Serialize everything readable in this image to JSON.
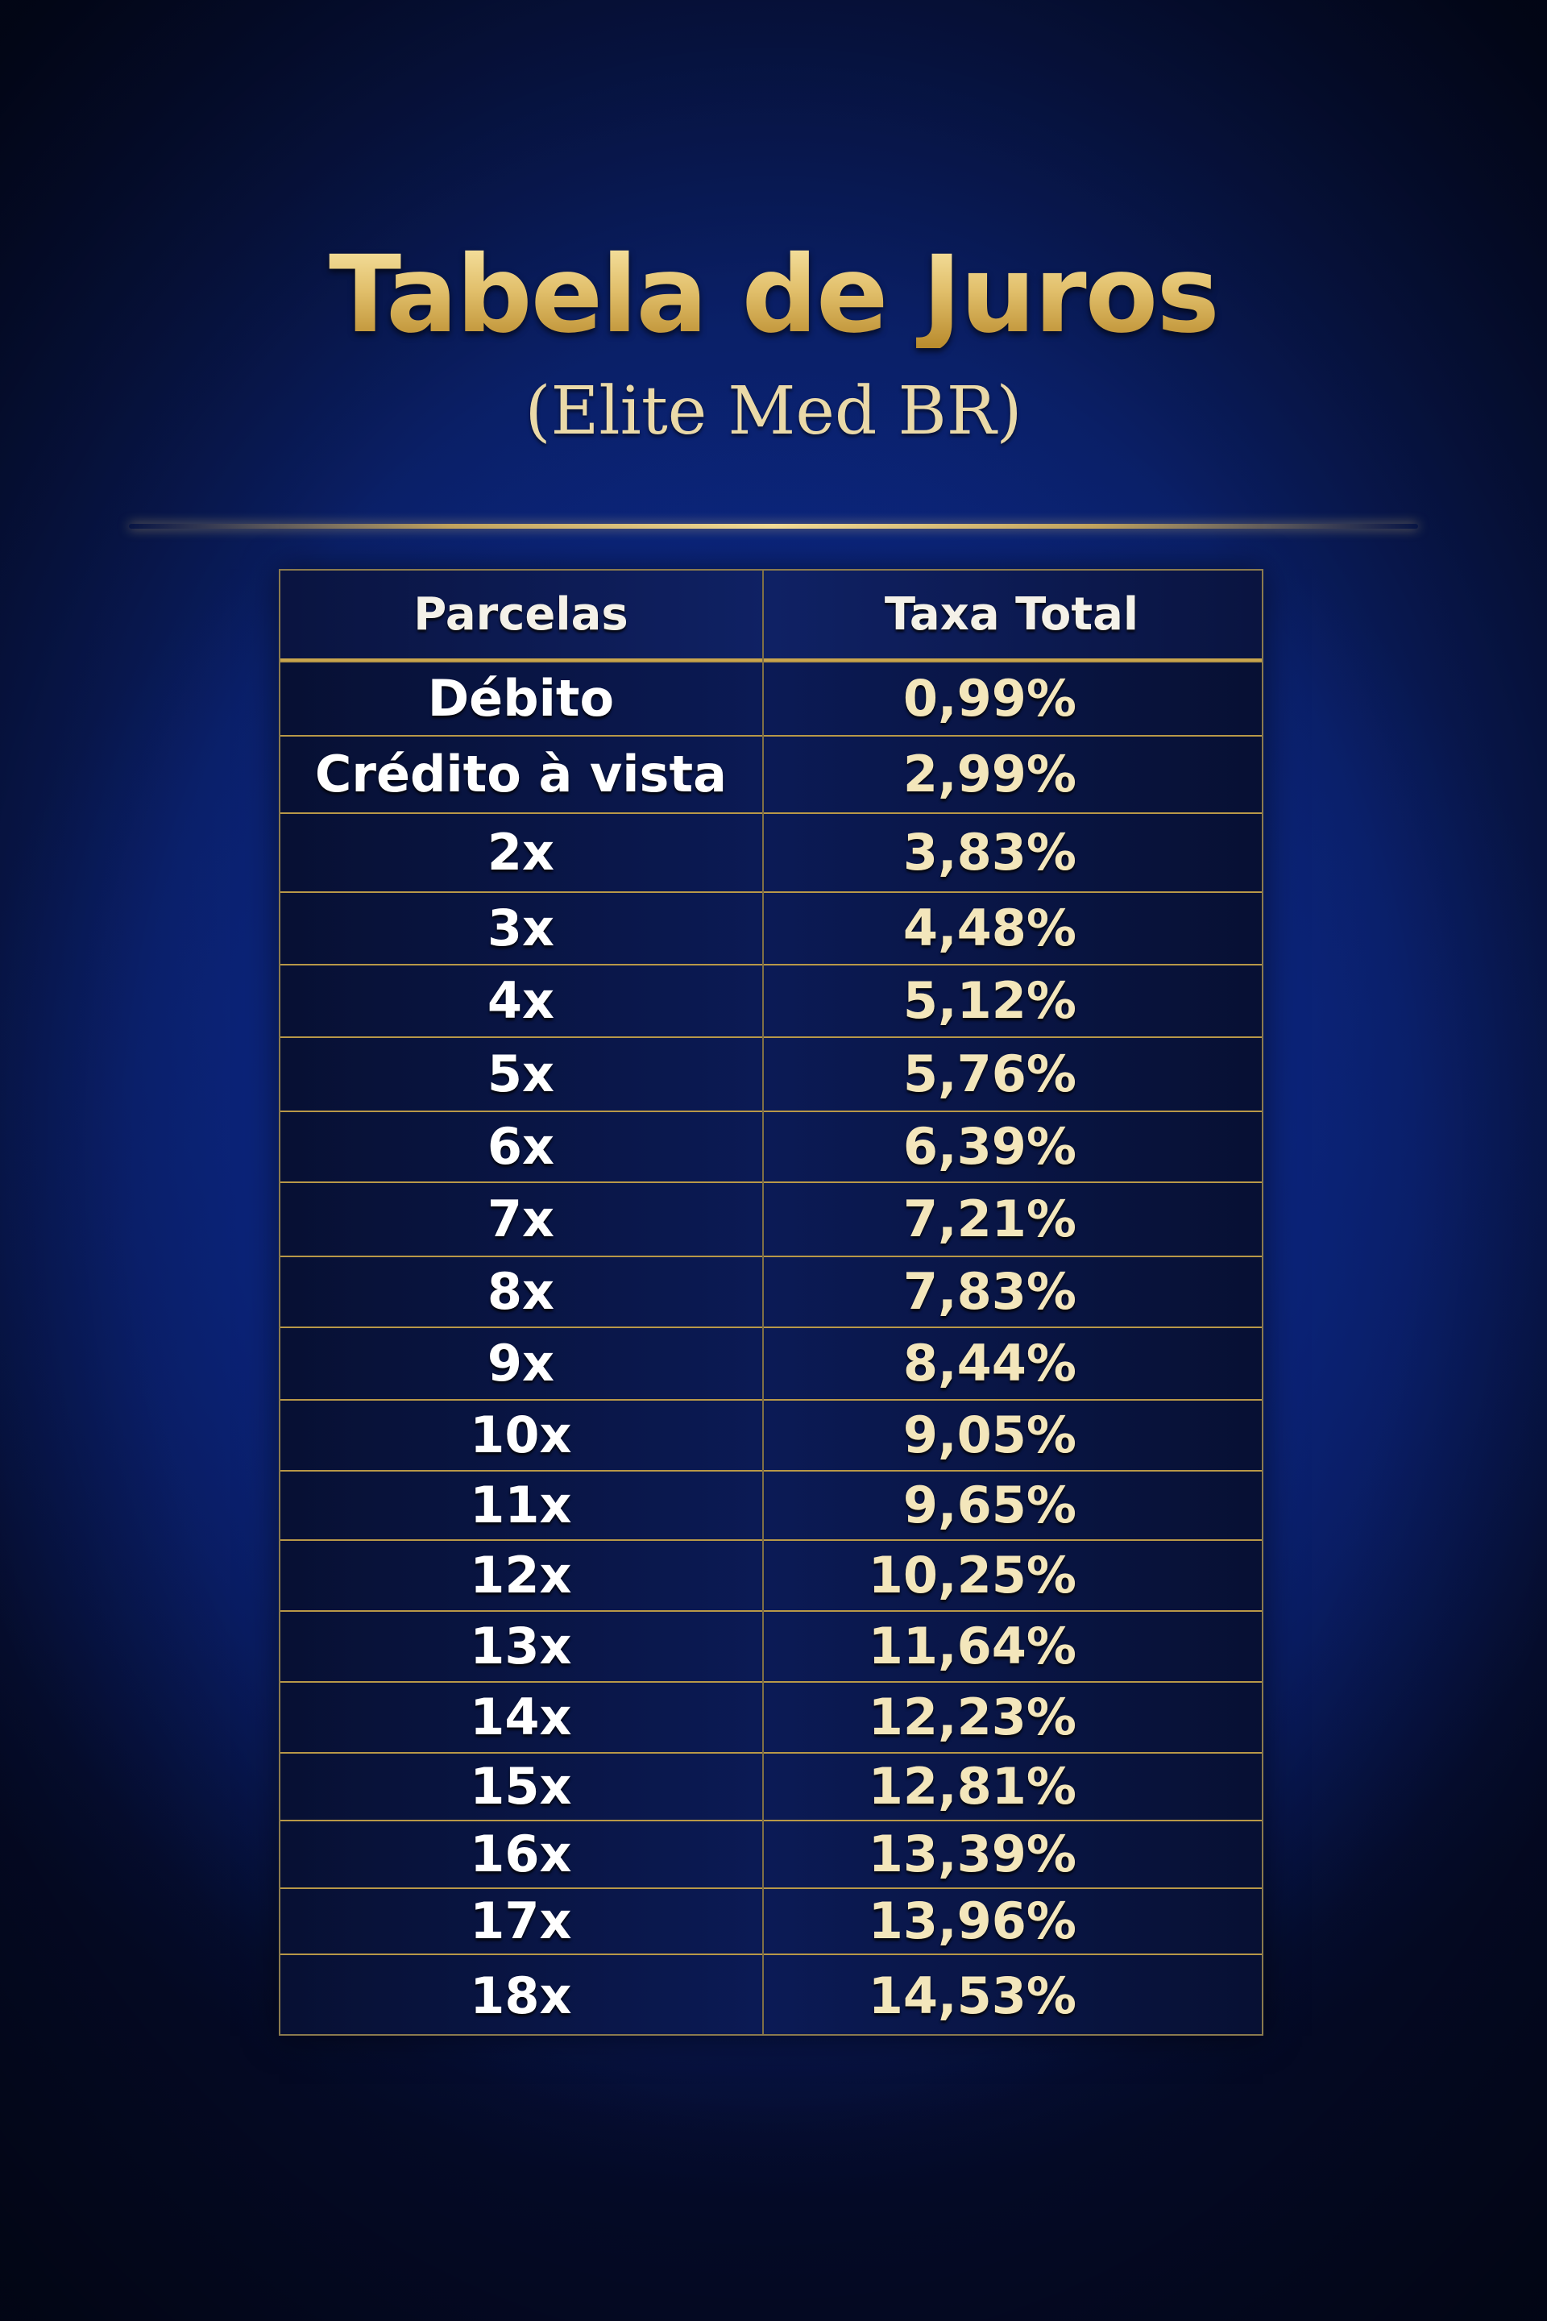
{
  "title": "Tabela de Juros",
  "subtitle": "(Elite Med BR)",
  "table": {
    "headers": [
      "Parcelas",
      "Taxa Total"
    ],
    "rows": [
      {
        "parcelas": "Débito",
        "taxa": "0,99%"
      },
      {
        "parcelas": "Crédito à vista",
        "taxa": "2,99%"
      },
      {
        "parcelas": "2x",
        "taxa": "3,83%"
      },
      {
        "parcelas": "3x",
        "taxa": "4,48%"
      },
      {
        "parcelas": "4x",
        "taxa": "5,12%"
      },
      {
        "parcelas": "5x",
        "taxa": "5,76%"
      },
      {
        "parcelas": "6x",
        "taxa": "6,39%"
      },
      {
        "parcelas": "7x",
        "taxa": "7,21%"
      },
      {
        "parcelas": "8x",
        "taxa": "7,83%"
      },
      {
        "parcelas": "9x",
        "taxa": "8,44%"
      },
      {
        "parcelas": "10x",
        "taxa": "9,05%"
      },
      {
        "parcelas": "11x",
        "taxa": "9,65%"
      },
      {
        "parcelas": "12x",
        "taxa": "10,25%"
      },
      {
        "parcelas": "13x",
        "taxa": "11,64%"
      },
      {
        "parcelas": "14x",
        "taxa": "12,23%"
      },
      {
        "parcelas": "15x",
        "taxa": "12,81%"
      },
      {
        "parcelas": "16x",
        "taxa": "13,39%"
      },
      {
        "parcelas": "17x",
        "taxa": "13,96%"
      },
      {
        "parcelas": "18x",
        "taxa": "14,53%"
      }
    ]
  },
  "colors": {
    "gold": "#d9b964",
    "background": "#0a1f66",
    "rate_text": "#f3e6bb"
  }
}
